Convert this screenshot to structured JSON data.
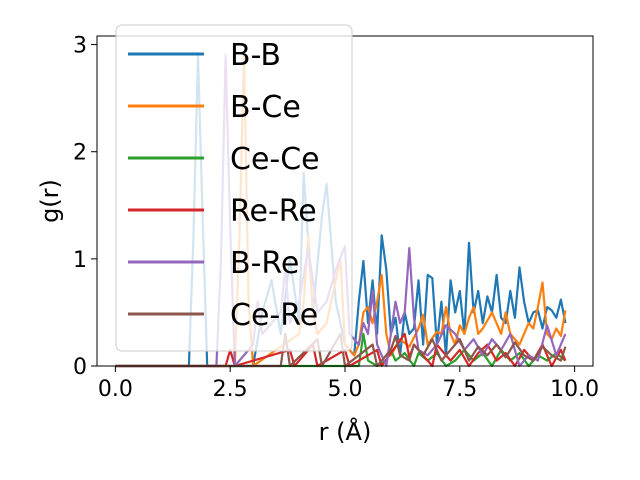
{
  "chart_data": {
    "type": "line",
    "xlabel": "r (Å)",
    "ylabel": "g(r)",
    "xlim": [
      -0.4,
      10.4
    ],
    "ylim": [
      0,
      3.08
    ],
    "xticks": [
      0.0,
      2.5,
      5.0,
      7.5,
      10.0
    ],
    "xtick_labels": [
      "0.0",
      "2.5",
      "5.0",
      "7.5",
      "10.0"
    ],
    "yticks": [
      0,
      1,
      2,
      3
    ],
    "ytick_labels": [
      "0",
      "1",
      "2",
      "3"
    ],
    "grid": false,
    "legend_position": "upper-left",
    "series": [
      {
        "name": "B-B",
        "color": "#1f77b4",
        "points": [
          [
            0.0,
            0
          ],
          [
            1.6,
            0
          ],
          [
            1.7,
            1.2
          ],
          [
            1.8,
            2.9
          ],
          [
            1.9,
            1.4
          ],
          [
            2.0,
            0
          ],
          [
            3.0,
            0
          ],
          [
            3.2,
            0.5
          ],
          [
            3.4,
            0.8
          ],
          [
            3.6,
            0.3
          ],
          [
            3.8,
            1.0
          ],
          [
            4.0,
            0.4
          ],
          [
            4.1,
            1.8
          ],
          [
            4.3,
            0.5
          ],
          [
            4.5,
            1.4
          ],
          [
            4.6,
            1.7
          ],
          [
            4.8,
            0.6
          ],
          [
            5.0,
            0.2
          ],
          [
            5.2,
            0.1
          ],
          [
            5.3,
            0.6
          ],
          [
            5.4,
            0.98
          ],
          [
            5.5,
            0.4
          ],
          [
            5.6,
            0.8
          ],
          [
            5.7,
            0.3
          ],
          [
            5.8,
            1.22
          ],
          [
            5.9,
            0.9
          ],
          [
            6.0,
            0.3
          ],
          [
            6.1,
            0.45
          ],
          [
            6.2,
            0.1
          ],
          [
            6.3,
            0.5
          ],
          [
            6.4,
            0.3
          ],
          [
            6.5,
            0.35
          ],
          [
            6.6,
            0.8
          ],
          [
            6.7,
            0.2
          ],
          [
            6.8,
            0.85
          ],
          [
            6.9,
            0.82
          ],
          [
            7.0,
            0.2
          ],
          [
            7.1,
            0.6
          ],
          [
            7.2,
            0.1
          ],
          [
            7.3,
            0.8
          ],
          [
            7.4,
            0.5
          ],
          [
            7.5,
            0.7
          ],
          [
            7.6,
            0.3
          ],
          [
            7.7,
            1.15
          ],
          [
            7.8,
            0.5
          ],
          [
            7.9,
            0.7
          ],
          [
            8.0,
            0.4
          ],
          [
            8.1,
            0.65
          ],
          [
            8.2,
            0.5
          ],
          [
            8.3,
            0.85
          ],
          [
            8.4,
            0.45
          ],
          [
            8.5,
            0.4
          ],
          [
            8.6,
            0.7
          ],
          [
            8.7,
            0.45
          ],
          [
            8.8,
            0.92
          ],
          [
            8.9,
            0.6
          ],
          [
            9.0,
            0.4
          ],
          [
            9.1,
            0.5
          ],
          [
            9.2,
            0.52
          ],
          [
            9.3,
            0.35
          ],
          [
            9.4,
            0.55
          ],
          [
            9.5,
            0.52
          ],
          [
            9.6,
            0.45
          ],
          [
            9.7,
            0.62
          ],
          [
            9.8,
            0.4
          ]
        ]
      },
      {
        "name": "B-Ce",
        "color": "#ff7f0e",
        "points": [
          [
            0.0,
            0
          ],
          [
            2.6,
            0
          ],
          [
            2.7,
            1.2
          ],
          [
            2.8,
            2.9
          ],
          [
            2.9,
            0.6
          ],
          [
            3.0,
            0
          ],
          [
            4.0,
            0.3
          ],
          [
            4.1,
            0.6
          ],
          [
            4.2,
            1.22
          ],
          [
            4.3,
            0.5
          ],
          [
            4.4,
            0.3
          ],
          [
            4.6,
            0.4
          ],
          [
            4.8,
            0.8
          ],
          [
            4.9,
            1.0
          ],
          [
            5.0,
            0.2
          ],
          [
            5.2,
            0.1
          ],
          [
            5.3,
            0.2
          ],
          [
            5.4,
            0.5
          ],
          [
            5.5,
            0.55
          ],
          [
            5.6,
            0.4
          ],
          [
            5.7,
            0.6
          ],
          [
            5.8,
            0.85
          ],
          [
            5.9,
            0.3
          ],
          [
            6.0,
            0.1
          ],
          [
            6.2,
            0.25
          ],
          [
            6.4,
            0.18
          ],
          [
            6.6,
            0.35
          ],
          [
            6.7,
            0.48
          ],
          [
            6.8,
            0.2
          ],
          [
            7.0,
            0.32
          ],
          [
            7.1,
            0.3
          ],
          [
            7.2,
            0.55
          ],
          [
            7.3,
            0.3
          ],
          [
            7.4,
            0.2
          ],
          [
            7.5,
            0.38
          ],
          [
            7.6,
            0.3
          ],
          [
            7.7,
            0.45
          ],
          [
            7.8,
            0.55
          ],
          [
            7.9,
            0.3
          ],
          [
            8.0,
            0.35
          ],
          [
            8.2,
            0.5
          ],
          [
            8.4,
            0.3
          ],
          [
            8.5,
            0.5
          ],
          [
            8.6,
            0.3
          ],
          [
            8.8,
            0.2
          ],
          [
            9.0,
            0.4
          ],
          [
            9.1,
            0.35
          ],
          [
            9.2,
            0.55
          ],
          [
            9.3,
            0.78
          ],
          [
            9.4,
            0.3
          ],
          [
            9.5,
            0.25
          ],
          [
            9.6,
            0.35
          ],
          [
            9.7,
            0.28
          ],
          [
            9.8,
            0.52
          ]
        ]
      },
      {
        "name": "Ce-Ce",
        "color": "#2ca02c",
        "points": [
          [
            0.0,
            0
          ],
          [
            5.3,
            0
          ],
          [
            5.4,
            0.3
          ],
          [
            5.5,
            0.05
          ],
          [
            5.7,
            0.0
          ],
          [
            5.9,
            0.05
          ],
          [
            6.0,
            0.15
          ],
          [
            6.1,
            0.05
          ],
          [
            6.3,
            0.12
          ],
          [
            6.5,
            0.0
          ],
          [
            6.6,
            0.12
          ],
          [
            6.8,
            0.05
          ],
          [
            7.0,
            0.12
          ],
          [
            7.2,
            0.0
          ],
          [
            7.4,
            0.05
          ],
          [
            7.6,
            0.15
          ],
          [
            7.8,
            0.05
          ],
          [
            8.0,
            0.12
          ],
          [
            8.2,
            0.0
          ],
          [
            8.4,
            0.15
          ],
          [
            8.6,
            0.05
          ],
          [
            8.8,
            0.12
          ],
          [
            9.0,
            0.0
          ],
          [
            9.2,
            0.1
          ],
          [
            9.4,
            0.05
          ],
          [
            9.6,
            0.12
          ],
          [
            9.8,
            0.05
          ]
        ]
      },
      {
        "name": "Re-Re",
        "color": "#d62728",
        "points": [
          [
            0.0,
            0
          ],
          [
            2.4,
            0
          ],
          [
            2.5,
            0.15
          ],
          [
            2.6,
            0
          ],
          [
            3.8,
            0.15
          ],
          [
            3.9,
            0
          ],
          [
            4.3,
            0.2
          ],
          [
            4.4,
            0
          ],
          [
            5.0,
            0.15
          ],
          [
            5.1,
            0
          ],
          [
            5.7,
            0.15
          ],
          [
            5.8,
            0
          ],
          [
            6.3,
            0.3
          ],
          [
            6.4,
            0.08
          ],
          [
            6.5,
            0.2
          ],
          [
            6.7,
            0.1
          ],
          [
            6.9,
            0.0
          ],
          [
            7.0,
            0.2
          ],
          [
            7.1,
            0.15
          ],
          [
            7.3,
            0.05
          ],
          [
            7.5,
            0.15
          ],
          [
            7.7,
            0.0
          ],
          [
            7.9,
            0.12
          ],
          [
            8.1,
            0.2
          ],
          [
            8.3,
            0.05
          ],
          [
            8.5,
            0.12
          ],
          [
            8.7,
            0.0
          ],
          [
            8.9,
            0.15
          ],
          [
            9.1,
            0.05
          ],
          [
            9.3,
            0.2
          ],
          [
            9.5,
            0.0
          ],
          [
            9.7,
            0.15
          ],
          [
            9.8,
            0.05
          ]
        ]
      },
      {
        "name": "B-Re",
        "color": "#9467bd",
        "points": [
          [
            0.0,
            0
          ],
          [
            2.2,
            0
          ],
          [
            2.3,
            1.0
          ],
          [
            2.4,
            2.9
          ],
          [
            2.5,
            1.3
          ],
          [
            2.6,
            0
          ],
          [
            3.0,
            0.2
          ],
          [
            3.1,
            0.6
          ],
          [
            3.2,
            0.3
          ],
          [
            3.6,
            0.5
          ],
          [
            3.7,
            0.9
          ],
          [
            3.8,
            0.4
          ],
          [
            4.0,
            0.6
          ],
          [
            4.2,
            1.1
          ],
          [
            4.4,
            0.5
          ],
          [
            4.6,
            0.6
          ],
          [
            4.8,
            0.9
          ],
          [
            5.0,
            1.12
          ],
          [
            5.1,
            0.3
          ],
          [
            5.3,
            0.2
          ],
          [
            5.4,
            0.4
          ],
          [
            5.5,
            0.3
          ],
          [
            5.6,
            0.7
          ],
          [
            5.7,
            0.2
          ],
          [
            5.9,
            0.0
          ],
          [
            6.0,
            0.3
          ],
          [
            6.1,
            0.6
          ],
          [
            6.2,
            0.4
          ],
          [
            6.3,
            0.5
          ],
          [
            6.4,
            1.1
          ],
          [
            6.5,
            0.45
          ],
          [
            6.6,
            0.15
          ],
          [
            6.8,
            0.1
          ],
          [
            7.0,
            0.2
          ],
          [
            7.2,
            0.38
          ],
          [
            7.4,
            0.3
          ],
          [
            7.6,
            0.15
          ],
          [
            7.8,
            0.25
          ],
          [
            8.0,
            0.1
          ],
          [
            8.2,
            0.25
          ],
          [
            8.4,
            0.15
          ],
          [
            8.6,
            0.3
          ],
          [
            8.8,
            0.0
          ],
          [
            9.0,
            0.1
          ],
          [
            9.2,
            0.05
          ],
          [
            9.4,
            0.38
          ],
          [
            9.6,
            0.1
          ],
          [
            9.8,
            0.3
          ]
        ]
      },
      {
        "name": "Ce-Re",
        "color": "#8c564b",
        "points": [
          [
            0.0,
            0
          ],
          [
            3.6,
            0
          ],
          [
            3.7,
            0.3
          ],
          [
            3.8,
            0.0
          ],
          [
            4.4,
            0.25
          ],
          [
            4.5,
            0.0
          ],
          [
            4.9,
            0.3
          ],
          [
            5.0,
            0.0
          ],
          [
            5.6,
            0.2
          ],
          [
            5.7,
            0.0
          ],
          [
            6.0,
            0.15
          ],
          [
            6.1,
            0.28
          ],
          [
            6.2,
            0.1
          ],
          [
            6.4,
            0.05
          ],
          [
            6.5,
            0.2
          ],
          [
            6.7,
            0.1
          ],
          [
            6.9,
            0.25
          ],
          [
            7.1,
            0.05
          ],
          [
            7.3,
            0.15
          ],
          [
            7.5,
            0.25
          ],
          [
            7.7,
            0.05
          ],
          [
            7.9,
            0.18
          ],
          [
            8.1,
            0.1
          ],
          [
            8.3,
            0.2
          ],
          [
            8.5,
            0.08
          ],
          [
            8.7,
            0.22
          ],
          [
            8.9,
            0.1
          ],
          [
            9.1,
            0.05
          ],
          [
            9.3,
            0.18
          ],
          [
            9.5,
            0.1
          ],
          [
            9.7,
            0.05
          ],
          [
            9.8,
            0.18
          ]
        ]
      }
    ]
  }
}
